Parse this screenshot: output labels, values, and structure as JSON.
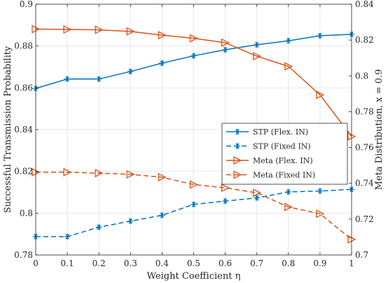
{
  "chart_data": {
    "type": "line",
    "title": "",
    "xlabel": "Weight Coefficient η",
    "ylabel_left": "Successful Transmission Probability",
    "ylabel_right": "Meta Distribution, x = 0.9",
    "x": [
      0,
      0.1,
      0.2,
      0.3,
      0.4,
      0.5,
      0.6,
      0.7,
      0.8,
      0.9,
      1
    ],
    "xlim": [
      0,
      1
    ],
    "ylim_left": [
      0.78,
      0.9
    ],
    "ylim_right": [
      0.7,
      0.84
    ],
    "x_ticks": [
      "0",
      "0.1",
      "0.2",
      "0.3",
      "0.4",
      "0.5",
      "0.6",
      "0.7",
      "0.8",
      "0.9",
      "1"
    ],
    "y_ticks_left": [
      "0.78",
      "0.8",
      "0.82",
      "0.84",
      "0.86",
      "0.88",
      "0.9"
    ],
    "y_ticks_right": [
      "0.7",
      "0.72",
      "0.74",
      "0.76",
      "0.78",
      "0.8",
      "0.82",
      "0.84"
    ],
    "grid": true,
    "legend_position": "center-right",
    "series": [
      {
        "name": "STP (Flex. IN)",
        "axis": "left",
        "style": "solid",
        "marker": "asterisk",
        "color": "#0072BD",
        "values": [
          0.8597,
          0.8642,
          0.8642,
          0.8678,
          0.8718,
          0.8753,
          0.8782,
          0.8806,
          0.8825,
          0.8849,
          0.8856
        ]
      },
      {
        "name": "STP (Fixed IN)",
        "axis": "left",
        "style": "dashed",
        "marker": "asterisk",
        "color": "#0072BD",
        "values": [
          0.7888,
          0.7888,
          0.7933,
          0.7962,
          0.799,
          0.8042,
          0.8058,
          0.8073,
          0.8102,
          0.8106,
          0.8114
        ]
      },
      {
        "name": "Meta (Flex. IN)",
        "axis": "right",
        "style": "solid",
        "marker": "triangle-right",
        "color": "#D95319",
        "values": [
          0.8261,
          0.8259,
          0.8257,
          0.8248,
          0.8227,
          0.821,
          0.8185,
          0.811,
          0.8053,
          0.7894,
          0.7662
        ]
      },
      {
        "name": "Meta (Fixed IN)",
        "axis": "right",
        "style": "dashed",
        "marker": "triangle-right",
        "color": "#D95319",
        "values": [
          0.7462,
          0.7462,
          0.7457,
          0.745,
          0.7434,
          0.7393,
          0.7375,
          0.7347,
          0.7268,
          0.723,
          0.7087
        ]
      }
    ]
  }
}
